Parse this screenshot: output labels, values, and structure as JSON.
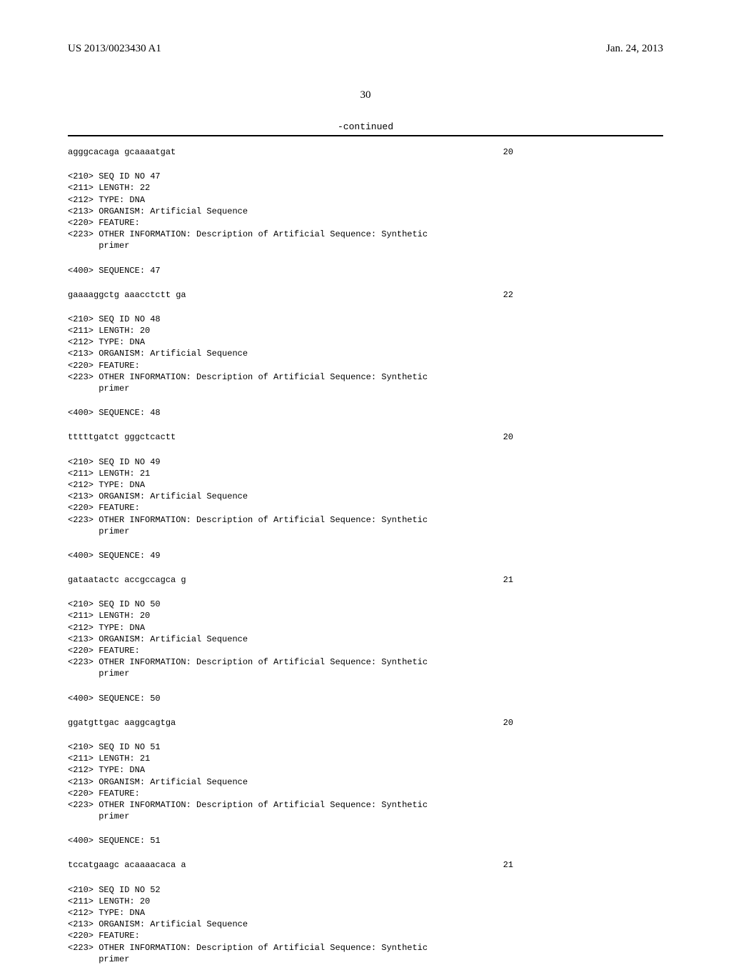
{
  "header": {
    "publication_number": "US 2013/0023430 A1",
    "publication_date": "Jan. 24, 2013"
  },
  "page_number": "30",
  "continued_label": "-continued",
  "entries": [
    {
      "preceding_sequence": {
        "text": "agggcacaga gcaaaatgat",
        "length": "20"
      },
      "header_lines": [
        "<210> SEQ ID NO 47",
        "<211> LENGTH: 22",
        "<212> TYPE: DNA",
        "<213> ORGANISM: Artificial Sequence",
        "<220> FEATURE:",
        "<223> OTHER INFORMATION: Description of Artificial Sequence: Synthetic",
        "      primer"
      ],
      "sequence_label": "<400> SEQUENCE: 47",
      "sequence": {
        "text": "gaaaaggctg aaacctctt ga",
        "length": "22"
      }
    },
    {
      "header_lines": [
        "<210> SEQ ID NO 48",
        "<211> LENGTH: 20",
        "<212> TYPE: DNA",
        "<213> ORGANISM: Artificial Sequence",
        "<220> FEATURE:",
        "<223> OTHER INFORMATION: Description of Artificial Sequence: Synthetic",
        "      primer"
      ],
      "sequence_label": "<400> SEQUENCE: 48",
      "sequence": {
        "text": "tttttgatct gggctcactt",
        "length": "20"
      }
    },
    {
      "header_lines": [
        "<210> SEQ ID NO 49",
        "<211> LENGTH: 21",
        "<212> TYPE: DNA",
        "<213> ORGANISM: Artificial Sequence",
        "<220> FEATURE:",
        "<223> OTHER INFORMATION: Description of Artificial Sequence: Synthetic",
        "      primer"
      ],
      "sequence_label": "<400> SEQUENCE: 49",
      "sequence": {
        "text": "gataatactc accgccagca g",
        "length": "21"
      }
    },
    {
      "header_lines": [
        "<210> SEQ ID NO 50",
        "<211> LENGTH: 20",
        "<212> TYPE: DNA",
        "<213> ORGANISM: Artificial Sequence",
        "<220> FEATURE:",
        "<223> OTHER INFORMATION: Description of Artificial Sequence: Synthetic",
        "      primer"
      ],
      "sequence_label": "<400> SEQUENCE: 50",
      "sequence": {
        "text": "ggatgttgac aaggcagtga",
        "length": "20"
      }
    },
    {
      "header_lines": [
        "<210> SEQ ID NO 51",
        "<211> LENGTH: 21",
        "<212> TYPE: DNA",
        "<213> ORGANISM: Artificial Sequence",
        "<220> FEATURE:",
        "<223> OTHER INFORMATION: Description of Artificial Sequence: Synthetic",
        "      primer"
      ],
      "sequence_label": "<400> SEQUENCE: 51",
      "sequence": {
        "text": "tccatgaagc acaaaacaca a",
        "length": "21"
      }
    },
    {
      "header_lines": [
        "<210> SEQ ID NO 52",
        "<211> LENGTH: 20",
        "<212> TYPE: DNA",
        "<213> ORGANISM: Artificial Sequence",
        "<220> FEATURE:",
        "<223> OTHER INFORMATION: Description of Artificial Sequence: Synthetic",
        "      primer"
      ]
    }
  ]
}
